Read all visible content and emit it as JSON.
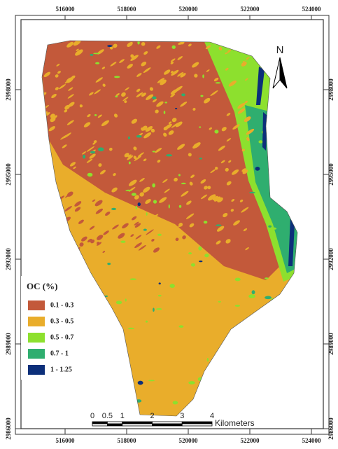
{
  "frame": {
    "x_labels": [
      516000,
      518000,
      520000,
      522000,
      524000
    ],
    "y_labels": [
      2998000,
      2995000,
      2992000,
      2989000,
      2986000
    ]
  },
  "north_arrow": "N",
  "legend": {
    "title": "OC (%)",
    "items": [
      {
        "label": "0.1 - 0.3",
        "color": "#c3593a"
      },
      {
        "label": "0.3 - 0.5",
        "color": "#e9ad2b"
      },
      {
        "label": "0.5 - 0.7",
        "color": "#8de02e"
      },
      {
        "label": "0.7 - 1",
        "color": "#2fae6f"
      },
      {
        "label": "1 - 1.25",
        "color": "#0c2f7a"
      }
    ]
  },
  "scale_bar": {
    "ticks": [
      0,
      0.5,
      1,
      2,
      3,
      4
    ],
    "unit": "Kilometers"
  }
}
